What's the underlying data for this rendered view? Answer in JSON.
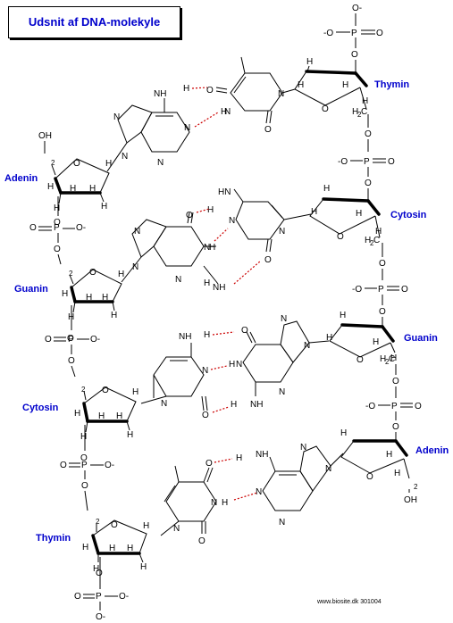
{
  "title": "Udsnit af DNA-molekyle",
  "credit": "www.biosite.dk 301004",
  "base_labels": {
    "thymin_right": "Thymin",
    "cytosin_right": "Cytosin",
    "guanin_right": "Guanin",
    "adenin_right": "Adenin",
    "adenin_left": "Adenin",
    "guanin_left": "Guanin",
    "cytosin_left": "Cytosin",
    "thymin_left": "Thymin"
  },
  "atoms": {
    "O": "O",
    "N": "N",
    "H": "H",
    "P": "P",
    "NH": "NH",
    "HN": "HN",
    "O_minus": "O-",
    "minus_O": "-O",
    "OH": "OH",
    "CH2": "CH",
    "H2C": "H C",
    "two": "2"
  },
  "colors": {
    "label": "#0000cc",
    "hbond": "#cc0000"
  }
}
